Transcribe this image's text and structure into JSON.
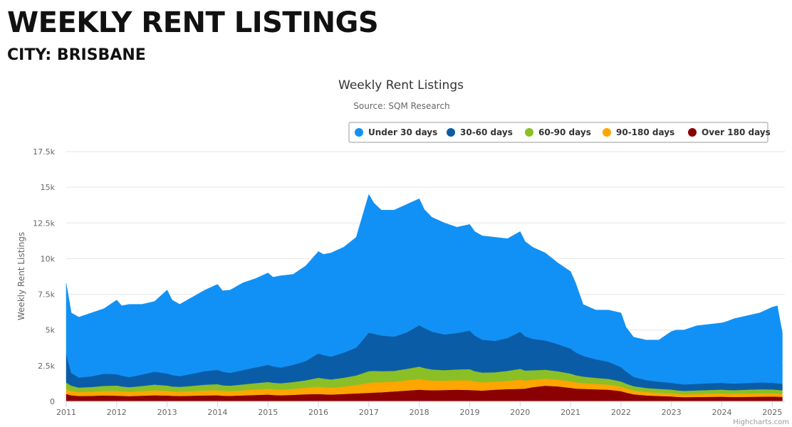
{
  "page": {
    "title": "WEEKLY RENT LISTINGS",
    "subtitle": "CITY: BRISBANE"
  },
  "credits": "Highcharts.com",
  "chart_data": {
    "type": "area",
    "stacked": true,
    "title": "Weekly Rent Listings",
    "subtitle": "Source: SQM Research",
    "ylabel": "Weekly Rent Listings",
    "xlabel": "",
    "ylim": [
      0,
      17500
    ],
    "yticks": [
      0,
      2500,
      5000,
      7500,
      10000,
      12500,
      15000,
      17500
    ],
    "ytick_labels": [
      "0",
      "2.5k",
      "5k",
      "7.5k",
      "10k",
      "12.5k",
      "15k",
      "17.5k"
    ],
    "xlim": [
      2011.0,
      2025.25
    ],
    "xticks": [
      "2011",
      "2012",
      "2013",
      "2014",
      "2015",
      "2016",
      "2017",
      "2018",
      "2019",
      "2020",
      "2021",
      "2022",
      "2023",
      "2024",
      "2025"
    ],
    "grid": true,
    "legend_position": "top-right",
    "x": [
      2011.0,
      2011.1,
      2011.25,
      2011.5,
      2011.75,
      2012.0,
      2012.1,
      2012.25,
      2012.5,
      2012.75,
      2013.0,
      2013.1,
      2013.25,
      2013.5,
      2013.75,
      2014.0,
      2014.1,
      2014.25,
      2014.5,
      2014.75,
      2015.0,
      2015.1,
      2015.25,
      2015.5,
      2015.75,
      2016.0,
      2016.1,
      2016.25,
      2016.5,
      2016.75,
      2017.0,
      2017.1,
      2017.25,
      2017.5,
      2017.75,
      2018.0,
      2018.1,
      2018.25,
      2018.5,
      2018.75,
      2019.0,
      2019.1,
      2019.25,
      2019.5,
      2019.75,
      2020.0,
      2020.1,
      2020.25,
      2020.5,
      2020.75,
      2021.0,
      2021.1,
      2021.25,
      2021.5,
      2021.75,
      2022.0,
      2022.1,
      2022.25,
      2022.5,
      2022.75,
      2023.0,
      2023.1,
      2023.25,
      2023.5,
      2023.75,
      2024.0,
      2024.1,
      2024.25,
      2024.5,
      2024.75,
      2025.0,
      2025.1,
      2025.2
    ],
    "series": [
      {
        "name": "Over 180 days",
        "color": "#8b0000",
        "values": [
          520,
          430,
          380,
          390,
          420,
          400,
          390,
          370,
          400,
          430,
          410,
          390,
          380,
          400,
          420,
          430,
          400,
          390,
          420,
          450,
          480,
          450,
          430,
          460,
          500,
          520,
          500,
          480,
          520,
          560,
          600,
          620,
          640,
          700,
          760,
          820,
          800,
          780,
          800,
          820,
          800,
          780,
          760,
          820,
          860,
          880,
          900,
          1000,
          1100,
          1050,
          950,
          900,
          880,
          850,
          820,
          720,
          620,
          500,
          420,
          380,
          350,
          320,
          300,
          310,
          320,
          330,
          320,
          310,
          320,
          330,
          340,
          330,
          320
        ]
      },
      {
        "name": "90-180 days",
        "color": "#ffa500",
        "values": [
          350,
          300,
          270,
          290,
          310,
          330,
          310,
          300,
          320,
          350,
          330,
          310,
          300,
          320,
          350,
          360,
          340,
          330,
          360,
          390,
          410,
          400,
          390,
          420,
          460,
          520,
          500,
          480,
          520,
          580,
          700,
          720,
          700,
          680,
          720,
          760,
          720,
          680,
          650,
          660,
          680,
          620,
          580,
          560,
          580,
          640,
          560,
          520,
          500,
          480,
          460,
          440,
          400,
          380,
          360,
          320,
          300,
          270,
          240,
          230,
          220,
          210,
          200,
          210,
          220,
          230,
          220,
          220,
          230,
          240,
          230,
          220,
          210
        ]
      },
      {
        "name": "60-90 days",
        "color": "#8bbf26",
        "values": [
          450,
          370,
          320,
          330,
          360,
          380,
          350,
          330,
          360,
          400,
          370,
          350,
          340,
          370,
          400,
          420,
          390,
          380,
          410,
          440,
          470,
          460,
          450,
          480,
          520,
          620,
          600,
          580,
          620,
          680,
          820,
          800,
          780,
          760,
          800,
          860,
          820,
          780,
          740,
          760,
          780,
          720,
          680,
          660,
          700,
          760,
          700,
          660,
          620,
          580,
          540,
          500,
          460,
          420,
          400,
          360,
          330,
          300,
          280,
          270,
          260,
          250,
          240,
          250,
          260,
          270,
          260,
          260,
          270,
          280,
          270,
          260,
          250
        ]
      },
      {
        "name": "30-60 days",
        "color": "#0b5ca6",
        "values": [
          2000,
          900,
          700,
          750,
          850,
          800,
          750,
          700,
          800,
          900,
          850,
          800,
          750,
          850,
          950,
          1000,
          950,
          900,
          1000,
          1100,
          1200,
          1150,
          1100,
          1200,
          1350,
          1700,
          1650,
          1600,
          1750,
          1950,
          2700,
          2600,
          2500,
          2400,
          2550,
          2900,
          2800,
          2650,
          2500,
          2550,
          2700,
          2500,
          2300,
          2200,
          2300,
          2600,
          2400,
          2200,
          2050,
          1900,
          1750,
          1600,
          1450,
          1300,
          1200,
          1000,
          850,
          650,
          550,
          500,
          480,
          470,
          450,
          460,
          470,
          480,
          470,
          460,
          470,
          480,
          470,
          460,
          450
        ]
      },
      {
        "name": "Under 30 days",
        "color": "#1191f5",
        "values": [
          4950,
          4200,
          4230,
          4440,
          4560,
          5190,
          4900,
          5100,
          4920,
          4920,
          5840,
          5250,
          5030,
          5360,
          5680,
          5990,
          5670,
          5800,
          6110,
          6220,
          6440,
          6240,
          6430,
          6340,
          6670,
          7140,
          7050,
          7260,
          7390,
          7730,
          9680,
          9160,
          8780,
          8860,
          8970,
          8860,
          8310,
          8010,
          7810,
          7410,
          7440,
          7280,
          7280,
          7260,
          6960,
          7020,
          6640,
          6420,
          6130,
          5690,
          5400,
          4860,
          3600,
          3450,
          3620,
          3800,
          3100,
          2780,
          2810,
          2920,
          3590,
          3750,
          3810,
          4070,
          4130,
          4190,
          4330,
          4550,
          4710,
          4870,
          5290,
          5430,
          3570
        ]
      }
    ]
  }
}
